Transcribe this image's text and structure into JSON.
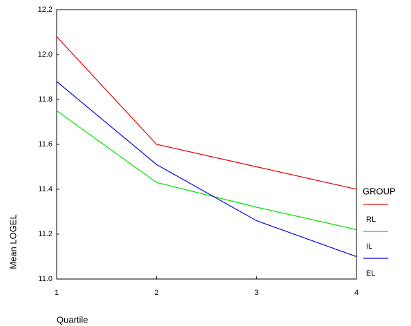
{
  "chart_data": {
    "type": "line",
    "x_label": "Quartile",
    "y_label": "Mean LOGEL",
    "legend_title": "GROUP",
    "x": [
      1,
      2,
      3,
      4
    ],
    "xlim": [
      1,
      4
    ],
    "xticks": [
      1,
      2,
      3,
      4
    ],
    "ylim": [
      11,
      12.2
    ],
    "yticks": [
      {
        "value": 11,
        "label": "11.0"
      },
      11.2,
      11.4,
      11.6,
      11.8,
      {
        "value": 12,
        "label": "12.0"
      },
      12.2
    ],
    "series": [
      {
        "name": "RL",
        "color": "#e00000",
        "values": [
          12.08,
          11.6,
          11.5,
          11.4
        ]
      },
      {
        "name": "IL",
        "color": "#00e000",
        "values": [
          11.75,
          11.43,
          11.32,
          11.22
        ]
      },
      {
        "name": "EL",
        "color": "#0000e0",
        "values": [
          11.88,
          11.51,
          11.26,
          11.1
        ]
      }
    ]
  }
}
